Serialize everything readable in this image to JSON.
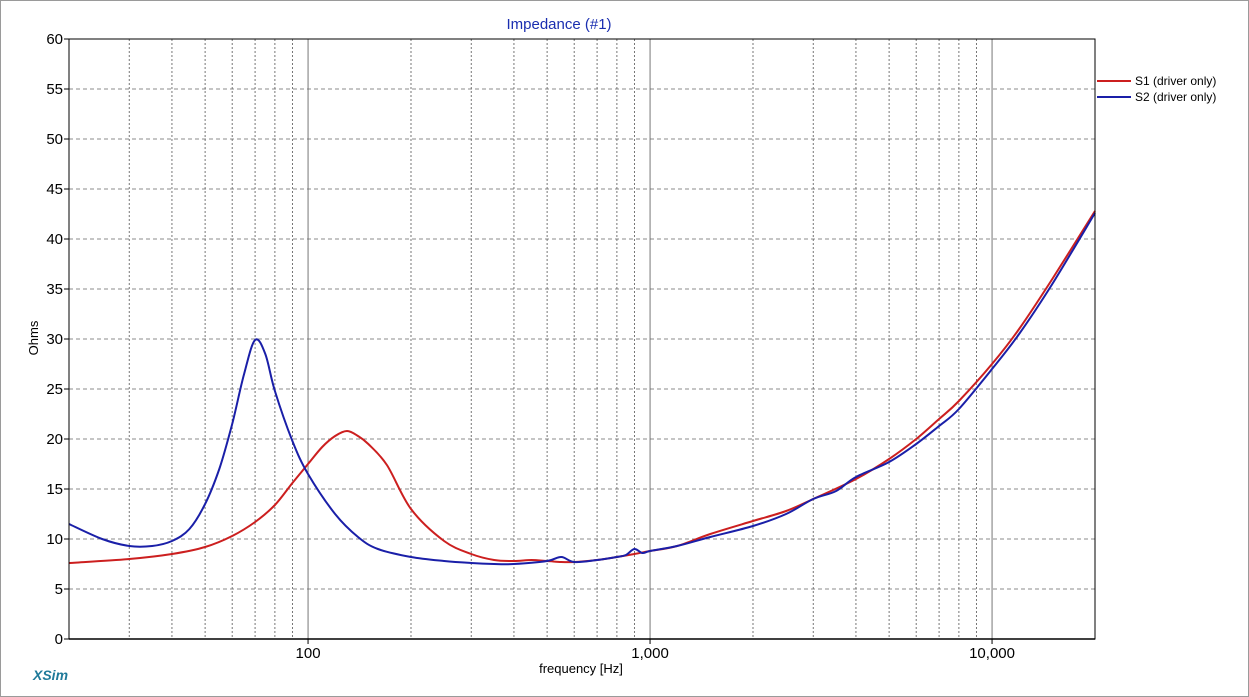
{
  "chart_data": {
    "type": "line",
    "title": "Impedance (#1)",
    "xlabel": "frequency [Hz]",
    "ylabel": "Ohms",
    "xscale": "log",
    "xlim": [
      20,
      20000
    ],
    "ylim": [
      0,
      60
    ],
    "yticks": [
      0,
      5,
      10,
      15,
      20,
      25,
      30,
      35,
      40,
      45,
      50,
      55,
      60
    ],
    "xtick_labels": [
      {
        "value": 100,
        "label": "100"
      },
      {
        "value": 1000,
        "label": "1,000"
      },
      {
        "value": 10000,
        "label": "10,000"
      }
    ],
    "grid": true,
    "legend_position": "top-right",
    "series": [
      {
        "name": "S1 (driver only)",
        "color": "#cc1f1f",
        "points": [
          [
            20,
            7.6
          ],
          [
            30,
            8.0
          ],
          [
            40,
            8.5
          ],
          [
            50,
            9.2
          ],
          [
            60,
            10.3
          ],
          [
            70,
            11.7
          ],
          [
            80,
            13.4
          ],
          [
            90,
            15.6
          ],
          [
            100,
            17.5
          ],
          [
            110,
            19.2
          ],
          [
            120,
            20.3
          ],
          [
            130,
            20.8
          ],
          [
            140,
            20.3
          ],
          [
            150,
            19.5
          ],
          [
            170,
            17.4
          ],
          [
            200,
            13.0
          ],
          [
            250,
            9.8
          ],
          [
            300,
            8.5
          ],
          [
            350,
            7.9
          ],
          [
            400,
            7.8
          ],
          [
            450,
            7.9
          ],
          [
            500,
            7.8
          ],
          [
            550,
            7.7
          ],
          [
            600,
            7.7
          ],
          [
            700,
            7.9
          ],
          [
            800,
            8.2
          ],
          [
            900,
            8.5
          ],
          [
            1000,
            8.8
          ],
          [
            1200,
            9.3
          ],
          [
            1500,
            10.5
          ],
          [
            2000,
            11.8
          ],
          [
            2500,
            12.8
          ],
          [
            3000,
            14.0
          ],
          [
            4000,
            16.0
          ],
          [
            5000,
            18.0
          ],
          [
            6000,
            20.0
          ],
          [
            7000,
            22.0
          ],
          [
            8000,
            23.8
          ],
          [
            10000,
            27.5
          ],
          [
            12000,
            31.0
          ],
          [
            15000,
            36.0
          ],
          [
            20000,
            42.8
          ]
        ]
      },
      {
        "name": "S2 (driver only)",
        "color": "#1a1fa8",
        "points": [
          [
            20,
            11.5
          ],
          [
            25,
            10.0
          ],
          [
            30,
            9.3
          ],
          [
            35,
            9.3
          ],
          [
            40,
            9.8
          ],
          [
            45,
            11.0
          ],
          [
            50,
            13.5
          ],
          [
            55,
            17.0
          ],
          [
            60,
            21.5
          ],
          [
            65,
            26.5
          ],
          [
            70,
            29.9
          ],
          [
            75,
            28.5
          ],
          [
            80,
            24.8
          ],
          [
            90,
            19.8
          ],
          [
            100,
            16.5
          ],
          [
            120,
            12.5
          ],
          [
            140,
            10.2
          ],
          [
            160,
            9.0
          ],
          [
            200,
            8.2
          ],
          [
            250,
            7.8
          ],
          [
            300,
            7.6
          ],
          [
            350,
            7.5
          ],
          [
            400,
            7.5
          ],
          [
            500,
            7.8
          ],
          [
            550,
            8.2
          ],
          [
            600,
            7.7
          ],
          [
            700,
            7.9
          ],
          [
            800,
            8.2
          ],
          [
            850,
            8.4
          ],
          [
            900,
            9.0
          ],
          [
            950,
            8.6
          ],
          [
            1000,
            8.8
          ],
          [
            1200,
            9.3
          ],
          [
            1500,
            10.2
          ],
          [
            2000,
            11.3
          ],
          [
            2500,
            12.5
          ],
          [
            3000,
            14.0
          ],
          [
            3500,
            14.8
          ],
          [
            4000,
            16.2
          ],
          [
            5000,
            17.7
          ],
          [
            6000,
            19.5
          ],
          [
            7000,
            21.3
          ],
          [
            8000,
            23.0
          ],
          [
            10000,
            27.0
          ],
          [
            12000,
            30.5
          ],
          [
            15000,
            35.5
          ],
          [
            20000,
            42.6
          ]
        ]
      }
    ]
  },
  "brand": "XSim"
}
